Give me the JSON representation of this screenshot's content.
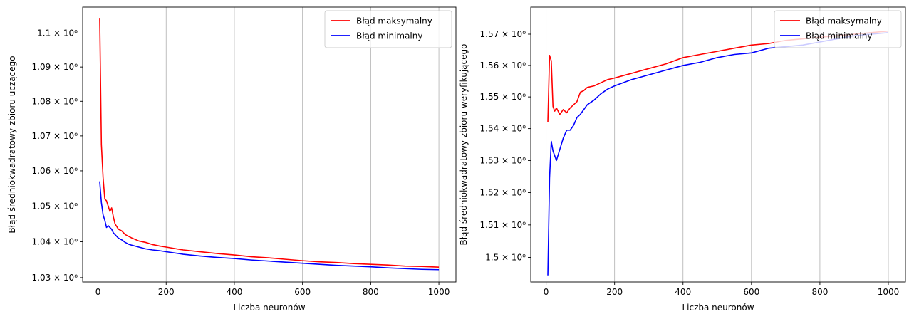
{
  "chart_data": [
    {
      "type": "line",
      "xlabel": "Liczba neuronów",
      "ylabel": "Błąd średniokwadratowy zbioru uczącego",
      "xlim": [
        -45,
        1050
      ],
      "ylim": [
        1.0288,
        1.1077
      ],
      "yscale": "log",
      "grid": "x-only",
      "legend_position": "top-right",
      "x_ticks": [
        {
          "value": 0,
          "label": "0"
        },
        {
          "value": 200,
          "label": "200"
        },
        {
          "value": 400,
          "label": "400"
        },
        {
          "value": 600,
          "label": "600"
        },
        {
          "value": 800,
          "label": "800"
        },
        {
          "value": 1000,
          "label": "1000"
        }
      ],
      "y_ticks": [
        {
          "value": 1.03,
          "label": "1.03 × 10⁰"
        },
        {
          "value": 1.04,
          "label": "1.04 × 10⁰"
        },
        {
          "value": 1.05,
          "label": "1.05 × 10⁰"
        },
        {
          "value": 1.06,
          "label": "1.06 × 10⁰"
        },
        {
          "value": 1.07,
          "label": "1.07 × 10⁰"
        },
        {
          "value": 1.08,
          "label": "1.08 × 10⁰"
        },
        {
          "value": 1.09,
          "label": "1.09 × 10⁰"
        },
        {
          "value": 1.1,
          "label": "1.1 × 10⁰"
        }
      ],
      "x": [
        5,
        10,
        15,
        20,
        25,
        30,
        35,
        40,
        45,
        50,
        60,
        70,
        80,
        90,
        100,
        120,
        140,
        160,
        180,
        200,
        250,
        300,
        350,
        400,
        450,
        500,
        550,
        600,
        650,
        700,
        750,
        800,
        850,
        900,
        950,
        1000
      ],
      "series": [
        {
          "name": "Błąd maksymalny",
          "color": "#ff0000",
          "values": [
            1.1045,
            1.0675,
            1.058,
            1.052,
            1.0515,
            1.05,
            1.0485,
            1.0495,
            1.047,
            1.045,
            1.0435,
            1.043,
            1.042,
            1.0415,
            1.041,
            1.0402,
            1.0398,
            1.0392,
            1.0388,
            1.0385,
            1.0377,
            1.0372,
            1.0367,
            1.0363,
            1.0358,
            1.0355,
            1.0351,
            1.0347,
            1.0344,
            1.0342,
            1.0339,
            1.0337,
            1.0335,
            1.0332,
            1.0331,
            1.0329
          ]
        },
        {
          "name": "Błąd minimalny",
          "color": "#0000ff",
          "values": [
            1.057,
            1.051,
            1.0475,
            1.046,
            1.044,
            1.0445,
            1.044,
            1.0435,
            1.0425,
            1.042,
            1.041,
            1.0405,
            1.0398,
            1.0393,
            1.039,
            1.0385,
            1.038,
            1.0377,
            1.0375,
            1.0372,
            1.0365,
            1.036,
            1.0356,
            1.0353,
            1.0349,
            1.0346,
            1.0343,
            1.034,
            1.0337,
            1.0334,
            1.0332,
            1.033,
            1.0327,
            1.0325,
            1.0323,
            1.0322
          ]
        }
      ]
    },
    {
      "type": "line",
      "xlabel": "Liczba neuronów",
      "ylabel": "Błąd średniokwadratowy zbioru weryfikującego",
      "xlim": [
        -45,
        1050
      ],
      "ylim": [
        1.4925,
        1.5787
      ],
      "yscale": "log",
      "grid": "x-only",
      "legend_position": "top-right",
      "x_ticks": [
        {
          "value": 0,
          "label": "0"
        },
        {
          "value": 200,
          "label": "200"
        },
        {
          "value": 400,
          "label": "400"
        },
        {
          "value": 600,
          "label": "600"
        },
        {
          "value": 800,
          "label": "800"
        },
        {
          "value": 1000,
          "label": "1000"
        }
      ],
      "y_ticks": [
        {
          "value": 1.5,
          "label": "1.5 × 10⁰"
        },
        {
          "value": 1.51,
          "label": "1.51 × 10⁰"
        },
        {
          "value": 1.52,
          "label": "1.52 × 10⁰"
        },
        {
          "value": 1.53,
          "label": "1.53 × 10⁰"
        },
        {
          "value": 1.54,
          "label": "1.54 × 10⁰"
        },
        {
          "value": 1.55,
          "label": "1.55 × 10⁰"
        },
        {
          "value": 1.56,
          "label": "1.56 × 10⁰"
        },
        {
          "value": 1.57,
          "label": "1.57 × 10⁰"
        }
      ],
      "x": [
        5,
        10,
        15,
        20,
        25,
        30,
        40,
        50,
        60,
        70,
        80,
        90,
        100,
        110,
        120,
        140,
        160,
        180,
        200,
        250,
        300,
        350,
        400,
        450,
        500,
        550,
        600,
        650,
        700,
        750,
        800,
        850,
        900,
        950,
        1000
      ],
      "series": [
        {
          "name": "Błąd maksymalny",
          "color": "#ff0000",
          "values": [
            1.542,
            1.5632,
            1.5615,
            1.547,
            1.5455,
            1.5465,
            1.5445,
            1.546,
            1.545,
            1.5465,
            1.5475,
            1.5485,
            1.5515,
            1.552,
            1.553,
            1.5535,
            1.5545,
            1.5555,
            1.556,
            1.5575,
            1.559,
            1.5605,
            1.5625,
            1.5635,
            1.5645,
            1.5655,
            1.5665,
            1.567,
            1.568,
            1.5685,
            1.569,
            1.5695,
            1.57,
            1.5705,
            1.571
          ]
        },
        {
          "name": "Błąd minimalny",
          "color": "#0000ff",
          "values": [
            1.4945,
            1.5245,
            1.536,
            1.533,
            1.5315,
            1.53,
            1.5335,
            1.537,
            1.5395,
            1.5395,
            1.541,
            1.5435,
            1.5445,
            1.546,
            1.5475,
            1.549,
            1.551,
            1.5525,
            1.5535,
            1.5555,
            1.557,
            1.5585,
            1.56,
            1.561,
            1.5625,
            1.5635,
            1.564,
            1.5655,
            1.566,
            1.5665,
            1.5675,
            1.5685,
            1.5695,
            1.57,
            1.5705
          ]
        }
      ]
    }
  ]
}
